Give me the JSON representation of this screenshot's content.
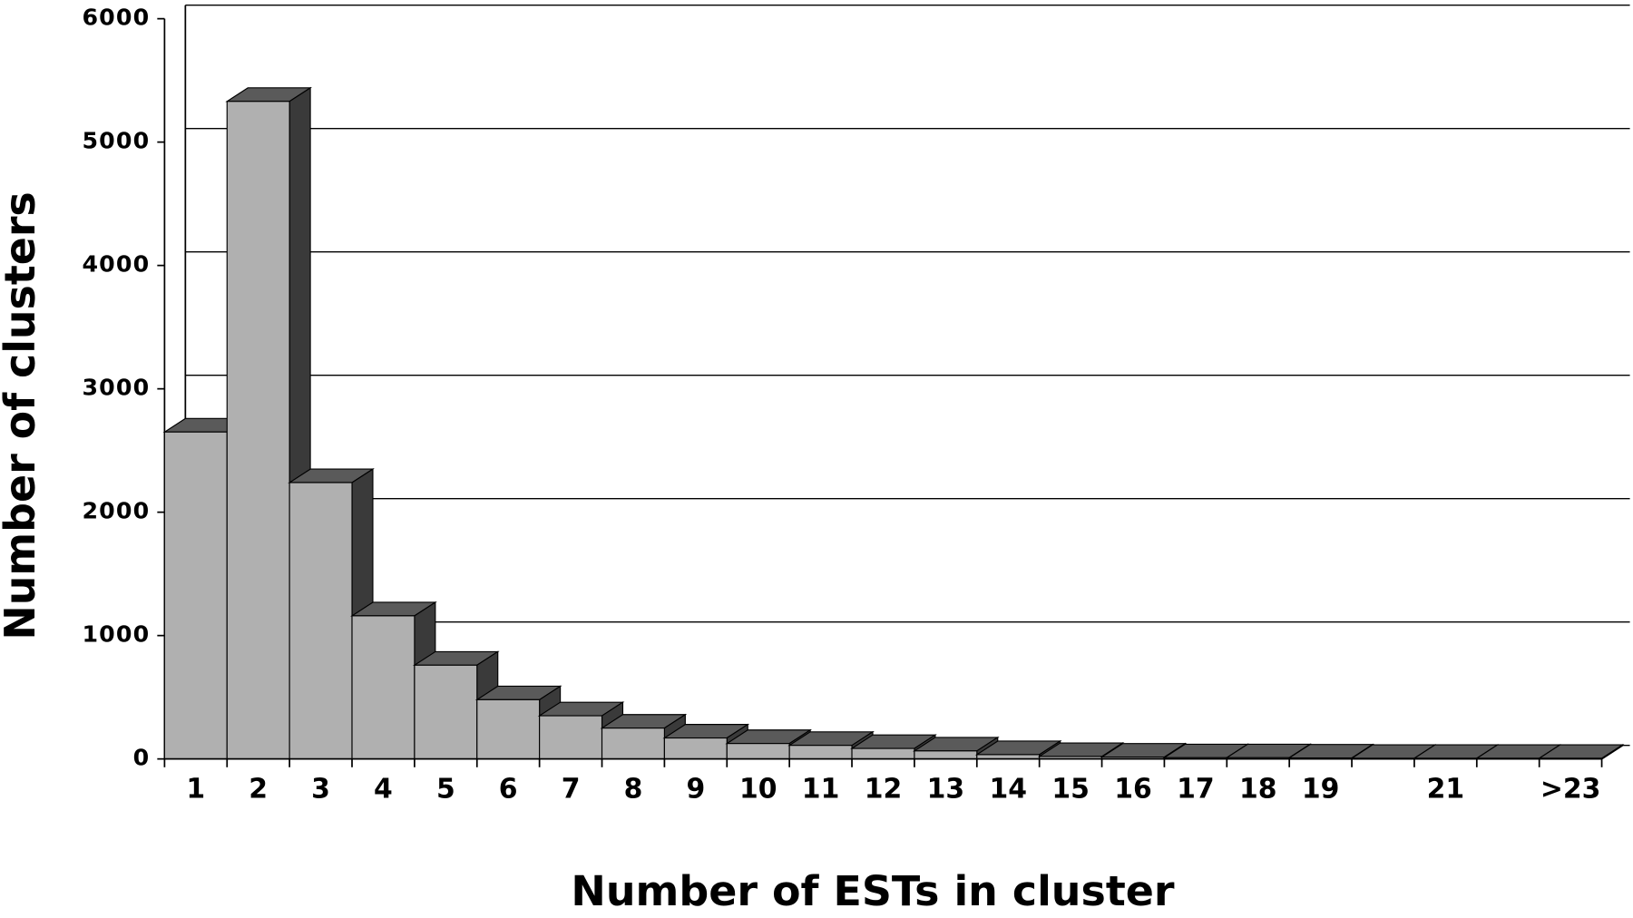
{
  "chart_data": {
    "type": "bar3d",
    "x_label": "Number of ESTs in cluster",
    "y_label": "Number of clusters",
    "categories": [
      "1",
      "2",
      "3",
      "4",
      "5",
      "6",
      "7",
      "8",
      "9",
      "10",
      "11",
      "12",
      "13",
      "14",
      "15",
      "16",
      "17",
      "18",
      "19",
      null,
      "21",
      null,
      ">23"
    ],
    "values": [
      2650,
      5330,
      2240,
      1160,
      760,
      480,
      350,
      250,
      170,
      125,
      110,
      85,
      65,
      35,
      20,
      15,
      10,
      10,
      8,
      5,
      5,
      5,
      5
    ],
    "color": "#b0b0b0",
    "ylim": [
      0,
      6000
    ],
    "yticks": [
      0,
      1000,
      2000,
      3000,
      4000,
      5000,
      6000
    ],
    "grid": true
  }
}
